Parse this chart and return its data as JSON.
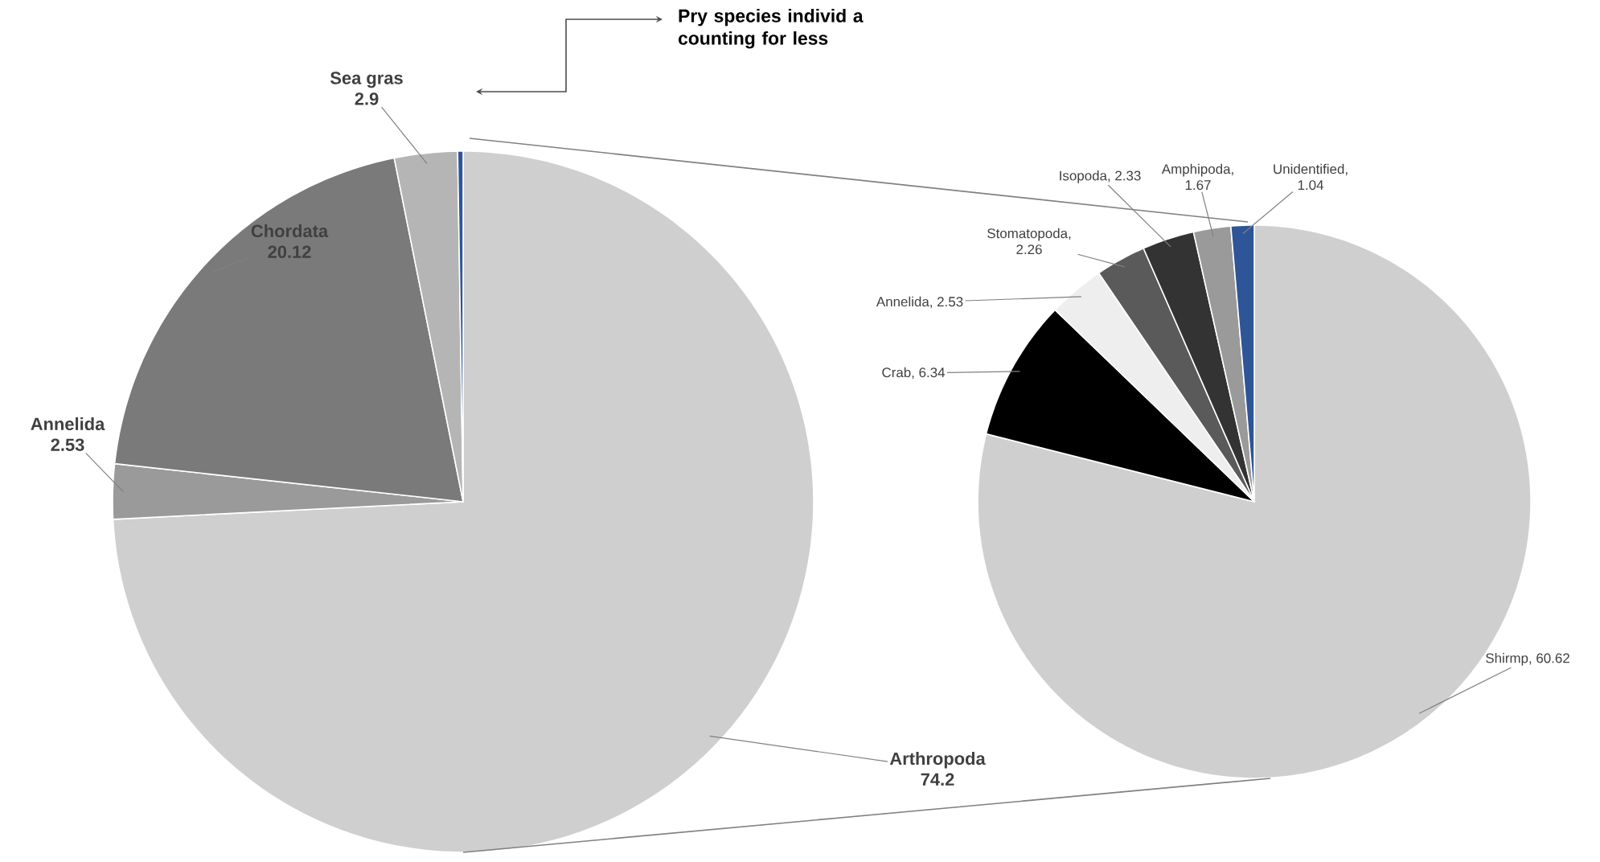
{
  "chart_data": [
    {
      "type": "pie",
      "categories": [
        "Arthropoda",
        "Annelida",
        "Chordata",
        "Sea gras",
        null
      ],
      "values": [
        74.2,
        2.53,
        20.12,
        2.9,
        0.25
      ],
      "colors": [
        "#cfcfcf",
        "#9a9a9a",
        "#7a7a7a",
        "#b5b5b5",
        "#2e5597"
      ],
      "value_labels": [
        "74.2",
        "2.53",
        "20.12",
        "2.9",
        null
      ],
      "annotations": [
        "Pry species individ a counting for less"
      ]
    },
    {
      "type": "pie",
      "categories": [
        null,
        null,
        null,
        null,
        null,
        null,
        null
      ],
      "values": [
        60.62,
        6.34,
        2.53,
        2.26,
        2.33,
        1.67,
        1.04
      ],
      "colors": [
        "#cfcfcf",
        "#000000",
        "#eeeeee",
        "#5a5a5a",
        "#333333",
        "#9a9a9a",
        "#2e5597"
      ],
      "value_labels": [
        "Shirmp, 60.62",
        "Crab, 6.34",
        "Annelida, 2.53",
        "Stomatopoda, 2.26",
        "Isopoda, 2.33",
        "Amphipoda, 1.67",
        "Unidentified, 1.04"
      ]
    }
  ]
}
